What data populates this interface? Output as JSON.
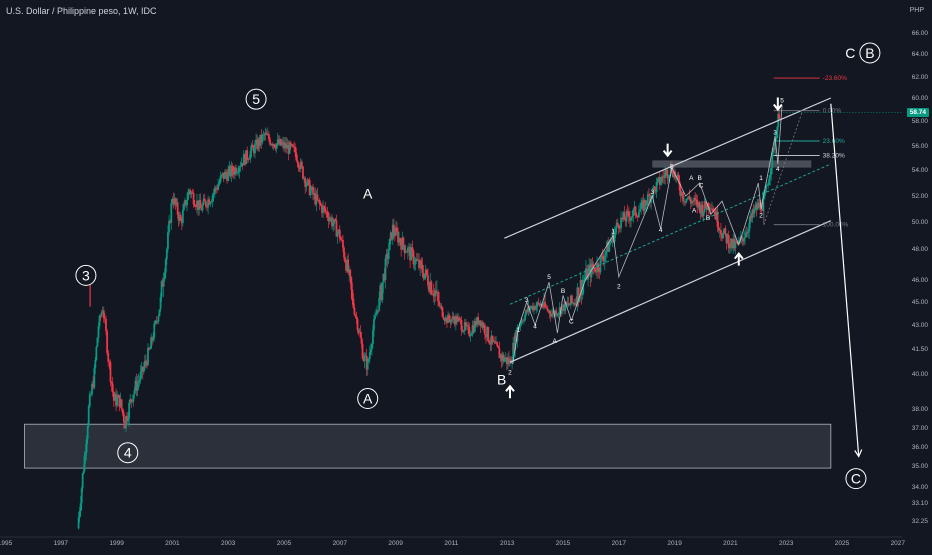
{
  "header": {
    "title": "U.S. Dollar / Philippine peso, 1W, IDC",
    "currency": "PHP",
    "last_price": "58.74"
  },
  "colors": {
    "background": "#131722",
    "up": "#089981",
    "down": "#f23645",
    "annotation": "#ffffff",
    "fib_red": "#f23645",
    "fib_teal": "#26a69a",
    "fib_gray": "#787b86"
  },
  "chart_data": {
    "type": "candlestick",
    "title": "U.S. Dollar / Philippine peso, 1W, IDC",
    "y_axis_unit": "PHP",
    "ylim": [
      31.7,
      67.0
    ],
    "xlim": [
      1995.0,
      2027.5
    ],
    "x_ticks": [
      "1995",
      "1997",
      "1999",
      "2001",
      "2003",
      "2005",
      "2007",
      "2009",
      "2011",
      "2013",
      "2015",
      "2017",
      "2019",
      "2021",
      "2023",
      "2025",
      "2027"
    ],
    "y_ticks": [
      "66.00",
      "64.00",
      "62.00",
      "60.00",
      "58.00",
      "56.00",
      "54.00",
      "52.00",
      "50.00",
      "48.00",
      "46.00",
      "45.00",
      "43.00",
      "41.50",
      "40.00",
      "38.00",
      "37.00",
      "36.00",
      "35.00",
      "34.00",
      "33.10",
      "32.25"
    ],
    "price_path": [
      [
        1997.6,
        31.9
      ],
      [
        1997.75,
        34.0
      ],
      [
        1997.85,
        35.5
      ],
      [
        1998.0,
        38.0
      ],
      [
        1998.2,
        40.0
      ],
      [
        1998.35,
        43.0
      ],
      [
        1998.5,
        44.5
      ],
      [
        1998.7,
        41.0
      ],
      [
        1998.9,
        38.5
      ],
      [
        1999.1,
        38.5
      ],
      [
        1999.3,
        37.3
      ],
      [
        1999.6,
        39.0
      ],
      [
        1999.9,
        40.0
      ],
      [
        2000.2,
        41.5
      ],
      [
        2000.5,
        44.0
      ],
      [
        2000.8,
        48.0
      ],
      [
        2001.0,
        52.0
      ],
      [
        2001.3,
        50.0
      ],
      [
        2001.6,
        52.5
      ],
      [
        2002.0,
        51.0
      ],
      [
        2002.4,
        52.0
      ],
      [
        2002.8,
        53.5
      ],
      [
        2003.2,
        54.0
      ],
      [
        2003.6,
        55.0
      ],
      [
        2004.0,
        56.0
      ],
      [
        2004.3,
        56.8
      ],
      [
        2004.7,
        56.2
      ],
      [
        2005.0,
        56.0
      ],
      [
        2005.4,
        55.5
      ],
      [
        2005.8,
        53.0
      ],
      [
        2006.2,
        51.5
      ],
      [
        2006.6,
        50.5
      ],
      [
        2007.0,
        49.0
      ],
      [
        2007.3,
        46.5
      ],
      [
        2007.6,
        43.5
      ],
      [
        2007.85,
        41.0
      ],
      [
        2008.0,
        40.5
      ],
      [
        2008.3,
        44.0
      ],
      [
        2008.6,
        46.5
      ],
      [
        2008.9,
        49.5
      ],
      [
        2009.2,
        48.5
      ],
      [
        2009.6,
        47.5
      ],
      [
        2010.0,
        46.5
      ],
      [
        2010.4,
        45.5
      ],
      [
        2010.8,
        43.5
      ],
      [
        2011.2,
        43.5
      ],
      [
        2011.6,
        42.5
      ],
      [
        2012.0,
        43.5
      ],
      [
        2012.4,
        42.0
      ],
      [
        2012.8,
        41.0
      ],
      [
        2013.1,
        40.7
      ],
      [
        2013.4,
        43.0
      ],
      [
        2013.8,
        44.5
      ],
      [
        2014.2,
        44.8
      ],
      [
        2014.6,
        44.0
      ],
      [
        2015.0,
        44.5
      ],
      [
        2015.4,
        45.0
      ],
      [
        2015.9,
        46.5
      ],
      [
        2016.3,
        47.0
      ],
      [
        2016.7,
        48.5
      ],
      [
        2017.0,
        50.0
      ],
      [
        2017.4,
        50.5
      ],
      [
        2017.8,
        51.0
      ],
      [
        2018.2,
        52.3
      ],
      [
        2018.7,
        53.8
      ],
      [
        2018.9,
        54.2
      ],
      [
        2019.3,
        52.0
      ],
      [
        2019.7,
        51.5
      ],
      [
        2020.0,
        51.0
      ],
      [
        2020.3,
        51.5
      ],
      [
        2020.7,
        49.2
      ],
      [
        2021.1,
        48.2
      ],
      [
        2021.3,
        48.3
      ],
      [
        2021.6,
        49.5
      ],
      [
        2021.9,
        51.0
      ],
      [
        2022.2,
        51.5
      ],
      [
        2022.5,
        55.0
      ],
      [
        2022.75,
        58.7
      ]
    ]
  },
  "wave_labels": [
    {
      "text": "3",
      "x": 1997.9,
      "y": 46.3,
      "circled": true
    },
    {
      "text": "4",
      "x": 1999.4,
      "y": 35.7,
      "circled": true
    },
    {
      "text": "5",
      "x": 2004.0,
      "y": 59.9,
      "circled": true
    },
    {
      "text": "A",
      "x": 2008.0,
      "y": 52.2,
      "circled": false
    },
    {
      "text": "A",
      "x": 2008.0,
      "y": 38.6,
      "circled": true
    },
    {
      "text": "B",
      "x": 2012.8,
      "y": 39.7,
      "circled": false
    },
    {
      "text": "C",
      "x": 2025.3,
      "y": 64.1,
      "circled": false
    },
    {
      "text": "B",
      "x": 2026.0,
      "y": 64.1,
      "circled": true
    },
    {
      "text": "C",
      "x": 2025.5,
      "y": 34.4,
      "circled": true
    }
  ],
  "small_labels": [
    {
      "text": "2",
      "x": 2013.1,
      "y": 40.1
    },
    {
      "text": "1",
      "x": 2013.4,
      "y": 42.7
    },
    {
      "text": "3",
      "x": 2013.7,
      "y": 45.1
    },
    {
      "text": "4",
      "x": 2014.0,
      "y": 42.9
    },
    {
      "text": "5",
      "x": 2014.5,
      "y": 46.2
    },
    {
      "text": "A",
      "x": 2014.7,
      "y": 42.0
    },
    {
      "text": "B",
      "x": 2015.0,
      "y": 45.5
    },
    {
      "text": "C",
      "x": 2015.3,
      "y": 43.3
    },
    {
      "text": "1",
      "x": 2016.8,
      "y": 49.3
    },
    {
      "text": "2",
      "x": 2017.0,
      "y": 45.7
    },
    {
      "text": "3",
      "x": 2018.2,
      "y": 52.3
    },
    {
      "text": "4",
      "x": 2018.5,
      "y": 49.4
    },
    {
      "text": "5",
      "x": 2018.9,
      "y": 54.3
    },
    {
      "text": "A",
      "x": 2019.6,
      "y": 53.4
    },
    {
      "text": "B",
      "x": 2019.9,
      "y": 53.4
    },
    {
      "text": "C",
      "x": 2019.95,
      "y": 52.8
    },
    {
      "text": "A",
      "x": 2019.7,
      "y": 50.9
    },
    {
      "text": "B",
      "x": 2020.2,
      "y": 50.3
    },
    {
      "text": "1",
      "x": 2022.1,
      "y": 53.4
    },
    {
      "text": "2",
      "x": 2022.1,
      "y": 50.5
    },
    {
      "text": "3",
      "x": 2022.6,
      "y": 57.1
    },
    {
      "text": "4",
      "x": 2022.7,
      "y": 54.1
    },
    {
      "text": "5",
      "x": 2022.85,
      "y": 59.8
    }
  ],
  "fib_levels": [
    {
      "label": "-23.60%",
      "price": 61.9,
      "color": "#f23645"
    },
    {
      "label": "0.00%",
      "price": 58.9,
      "color": "#787b86"
    },
    {
      "label": "23.60%",
      "price": 56.4,
      "color": "#26a69a"
    },
    {
      "label": "38.20%",
      "price": 55.2,
      "color": "#d1d4dc"
    },
    {
      "label": "100.00%",
      "price": 49.8,
      "color": "#787b86"
    }
  ]
}
